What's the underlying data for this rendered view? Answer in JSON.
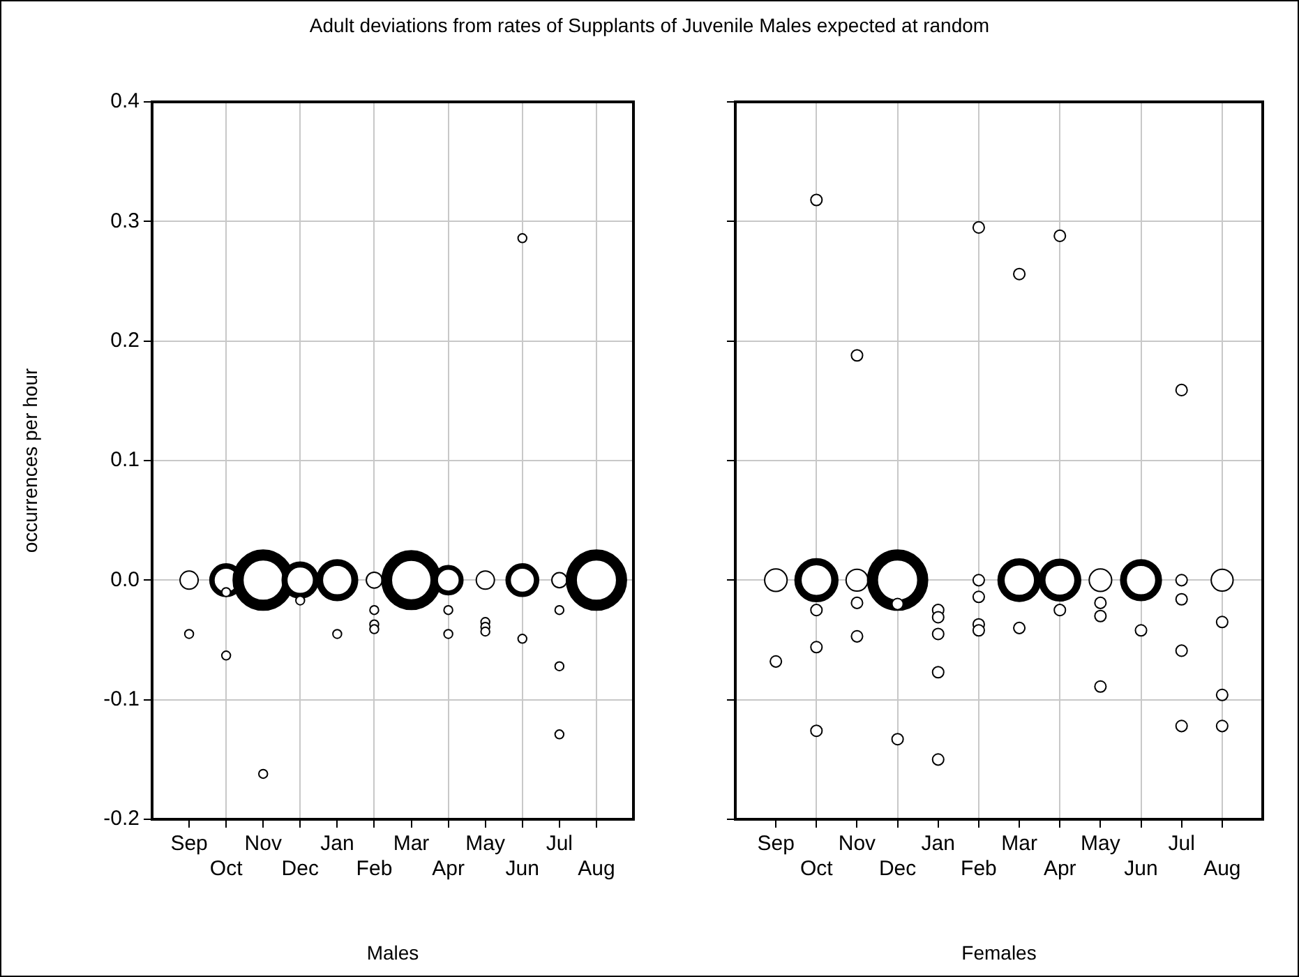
{
  "chart_data": [
    {
      "type": "bubble",
      "title": "Adult deviations from rates of Supplants of Juvenile Males expected at random",
      "xlabel": "Males",
      "ylabel": "occurrences per hour",
      "categories": [
        "Sep",
        "Oct",
        "Nov",
        "Dec",
        "Jan",
        "Feb",
        "Mar",
        "Apr",
        "May",
        "Jun",
        "Jul",
        "Aug"
      ],
      "ylim": [
        -0.2,
        0.4
      ],
      "yticks": [
        -0.2,
        -0.1,
        {
          "value": 0,
          "label": "0.0"
        },
        0.1,
        0.2,
        0.3,
        0.4
      ],
      "grid": true,
      "legend": false,
      "series": [
        {
          "color": "#000000",
          "values": [
            0,
            0,
            0,
            0,
            0,
            0,
            0,
            0,
            0,
            0,
            0,
            0
          ],
          "sizes": [
            0.13,
            0.32,
            1,
            0.39,
            0.49,
            0.1,
            0.96,
            0.26,
            0.13,
            0.32,
            0.09,
            1
          ]
        },
        {
          "color": "#000000",
          "values": [
            -0.045,
            -0.01,
            -0.162,
            -0.017,
            -0.045,
            -0.025,
            null,
            -0.025,
            -0.035,
            0.286,
            -0.025,
            null
          ],
          "sizes": [
            0.03,
            0.03,
            0.03,
            0.03,
            0.03,
            0.03,
            null,
            0.03,
            0.03,
            0.03,
            0.03,
            null
          ]
        },
        {
          "color": "#000000",
          "values": [
            null,
            -0.063,
            null,
            null,
            null,
            -0.037,
            null,
            -0.045,
            -0.039,
            -0.049,
            -0.072,
            null
          ],
          "sizes": [
            null,
            0.03,
            null,
            null,
            null,
            0.03,
            null,
            0.03,
            0.03,
            0.03,
            0.03,
            null
          ]
        },
        {
          "color": "#000000",
          "values": [
            null,
            null,
            null,
            null,
            null,
            -0.041,
            null,
            null,
            -0.043,
            null,
            -0.129,
            null
          ],
          "sizes": [
            null,
            null,
            null,
            null,
            null,
            0.03,
            null,
            null,
            0.03,
            null,
            0.03,
            null
          ]
        }
      ]
    },
    {
      "type": "bubble",
      "xlabel": "Females",
      "categories": [
        "Sep",
        "Oct",
        "Nov",
        "Dec",
        "Jan",
        "Feb",
        "Mar",
        "Apr",
        "May",
        "Jun",
        "Jul",
        "Aug"
      ],
      "ylim": [
        -0.2,
        0.4
      ],
      "yticks": [
        -0.2,
        -0.1,
        0,
        0.1,
        0.2,
        0.3,
        0.4
      ],
      "grid": true,
      "legend": false,
      "tick_labels": "x",
      "series": [
        {
          "color": "#000000",
          "values": [
            0,
            0,
            0,
            0,
            null,
            null,
            0,
            0,
            0,
            0,
            null,
            0
          ],
          "sizes": [
            0.2,
            0.54,
            0.19,
            1,
            null,
            null,
            0.53,
            0.51,
            0.2,
            0.49,
            null,
            0.19
          ]
        },
        {
          "color": "#000000",
          "values": [
            -0.068,
            0.318,
            0.188,
            -0.02,
            -0.025,
            0.295,
            0.256,
            0.288,
            -0.019,
            -0.042,
            0.159,
            -0.035
          ],
          "sizes": [
            0.05,
            0.05,
            0.05,
            0.05,
            0.05,
            0.05,
            0.05,
            0.05,
            0.05,
            0.05,
            0.05,
            0.05
          ]
        },
        {
          "color": "#000000",
          "values": [
            null,
            -0.025,
            -0.019,
            -0.133,
            -0.031,
            0,
            -0.04,
            -0.025,
            -0.03,
            null,
            0,
            -0.096
          ],
          "sizes": [
            null,
            0.05,
            0.05,
            0.05,
            0.05,
            0.05,
            0.05,
            0.05,
            0.05,
            null,
            0.05,
            0.05
          ]
        },
        {
          "color": "#000000",
          "values": [
            null,
            -0.056,
            -0.047,
            null,
            -0.045,
            -0.014,
            null,
            null,
            -0.089,
            null,
            -0.016,
            -0.122
          ],
          "sizes": [
            null,
            0.05,
            0.05,
            null,
            0.05,
            0.05,
            null,
            null,
            0.05,
            null,
            0.05,
            0.05
          ]
        },
        {
          "color": "#000000",
          "values": [
            null,
            -0.126,
            null,
            null,
            -0.077,
            -0.037,
            null,
            null,
            null,
            null,
            -0.059,
            null
          ],
          "sizes": [
            null,
            0.05,
            null,
            null,
            0.05,
            0.05,
            null,
            null,
            null,
            null,
            0.05,
            null
          ]
        },
        {
          "color": "#000000",
          "values": [
            null,
            null,
            null,
            null,
            -0.15,
            -0.042,
            null,
            null,
            null,
            null,
            -0.122,
            null
          ],
          "sizes": [
            null,
            null,
            null,
            null,
            0.05,
            0.05,
            null,
            null,
            null,
            null,
            0.05,
            null
          ]
        }
      ]
    }
  ]
}
